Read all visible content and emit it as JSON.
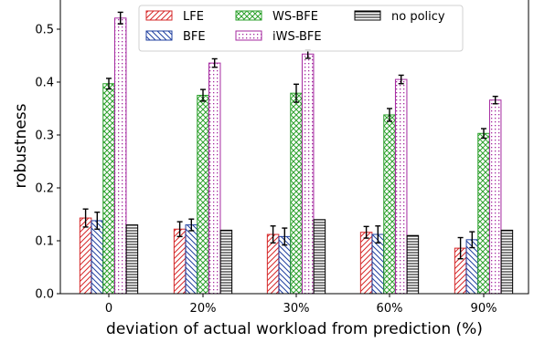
{
  "chart_data": {
    "type": "bar",
    "title": "",
    "xlabel": "deviation of actual workload from prediction (%)",
    "ylabel": "robustness",
    "categories": [
      "0",
      "20%",
      "30%",
      "60%",
      "90%"
    ],
    "ylim": [
      0.0,
      0.55
    ],
    "yticks": [
      "0.0",
      "0.1",
      "0.2",
      "0.3",
      "0.4",
      "0.5"
    ],
    "grid": false,
    "legend_position": "top-center",
    "series": [
      {
        "name": "LFE",
        "color": "#d62728",
        "pattern": "diagonal",
        "values": [
          0.143,
          0.122,
          0.112,
          0.116,
          0.086
        ],
        "errors": [
          0.017,
          0.014,
          0.016,
          0.011,
          0.02
        ]
      },
      {
        "name": "BFE",
        "color": "#1f3f9f",
        "pattern": "backdiagonal",
        "values": [
          0.138,
          0.13,
          0.108,
          0.112,
          0.102
        ],
        "errors": [
          0.016,
          0.011,
          0.016,
          0.016,
          0.015
        ]
      },
      {
        "name": "WS-BFE",
        "color": "#2ca02c",
        "pattern": "crosshatch",
        "values": [
          0.397,
          0.375,
          0.379,
          0.338,
          0.303
        ],
        "errors": [
          0.01,
          0.011,
          0.017,
          0.012,
          0.009
        ]
      },
      {
        "name": "iWS-BFE",
        "color": "#a4289f",
        "pattern": "dots",
        "values": [
          0.521,
          0.436,
          0.453,
          0.405,
          0.366
        ],
        "errors": [
          0.011,
          0.008,
          0.008,
          0.008,
          0.007
        ]
      },
      {
        "name": "no policy",
        "color": "#000000",
        "pattern": "horizontal",
        "values": [
          0.13,
          0.12,
          0.14,
          0.11,
          0.12
        ],
        "errors": null
      }
    ]
  }
}
